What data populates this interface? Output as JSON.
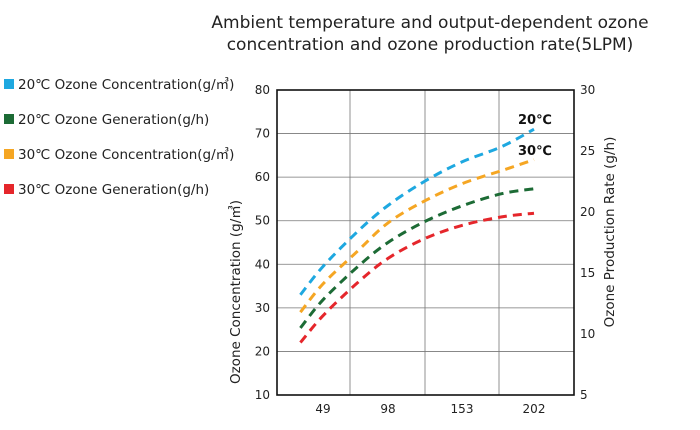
{
  "chart_data": {
    "type": "line",
    "title_lines": [
      "Ambient temperature and output-dependent ozone",
      "concentration and ozone production rate(5LPM)"
    ],
    "categories": [
      "49",
      "98",
      "153",
      "202"
    ],
    "y_left": {
      "label": "Ozone Concentration (g/㎥)",
      "min": 10,
      "max": 80,
      "ticks": [
        "10",
        "20",
        "30",
        "40",
        "50",
        "60",
        "70",
        "80"
      ]
    },
    "y_right": {
      "label": "Ozone Production Rate (g/h)",
      "min": 5,
      "max": 30,
      "ticks": [
        "5",
        "10",
        "15",
        "20",
        "25",
        "30"
      ]
    },
    "grid": true,
    "legend_position": "left",
    "series": [
      {
        "name": "20℃ Ozone Concentration(g/㎥)",
        "color": "#1ea8e0",
        "axis": "left",
        "x": [
          32,
          49,
          75,
          98,
          125,
          153,
          180,
          202
        ],
        "y": [
          33,
          39.5,
          47.5,
          53.5,
          59,
          63.5,
          67,
          71
        ]
      },
      {
        "name": "20℃ Ozone Generation(g/h)",
        "color": "#1c6b35",
        "axis": "right",
        "x": [
          32,
          49,
          75,
          98,
          125,
          153,
          180,
          202
        ],
        "y": [
          10.5,
          12.8,
          15.5,
          17.5,
          19.2,
          20.5,
          21.5,
          21.9
        ]
      },
      {
        "name": "30℃ Ozone Concentration(g/㎥)",
        "color": "#f5a623",
        "axis": "left",
        "x": [
          32,
          49,
          75,
          98,
          125,
          153,
          180,
          202
        ],
        "y": [
          29,
          35.5,
          43,
          49.5,
          54.5,
          58.5,
          61.5,
          64
        ]
      },
      {
        "name": "30℃ Ozone Generation(g/h)",
        "color": "#e5262b",
        "axis": "right",
        "x": [
          32,
          49,
          75,
          98,
          125,
          153,
          180,
          202
        ],
        "y": [
          9.3,
          11.5,
          14.2,
          16.2,
          17.8,
          18.9,
          19.6,
          19.9
        ]
      }
    ],
    "annotations": [
      "20℃",
      "30℃"
    ]
  }
}
